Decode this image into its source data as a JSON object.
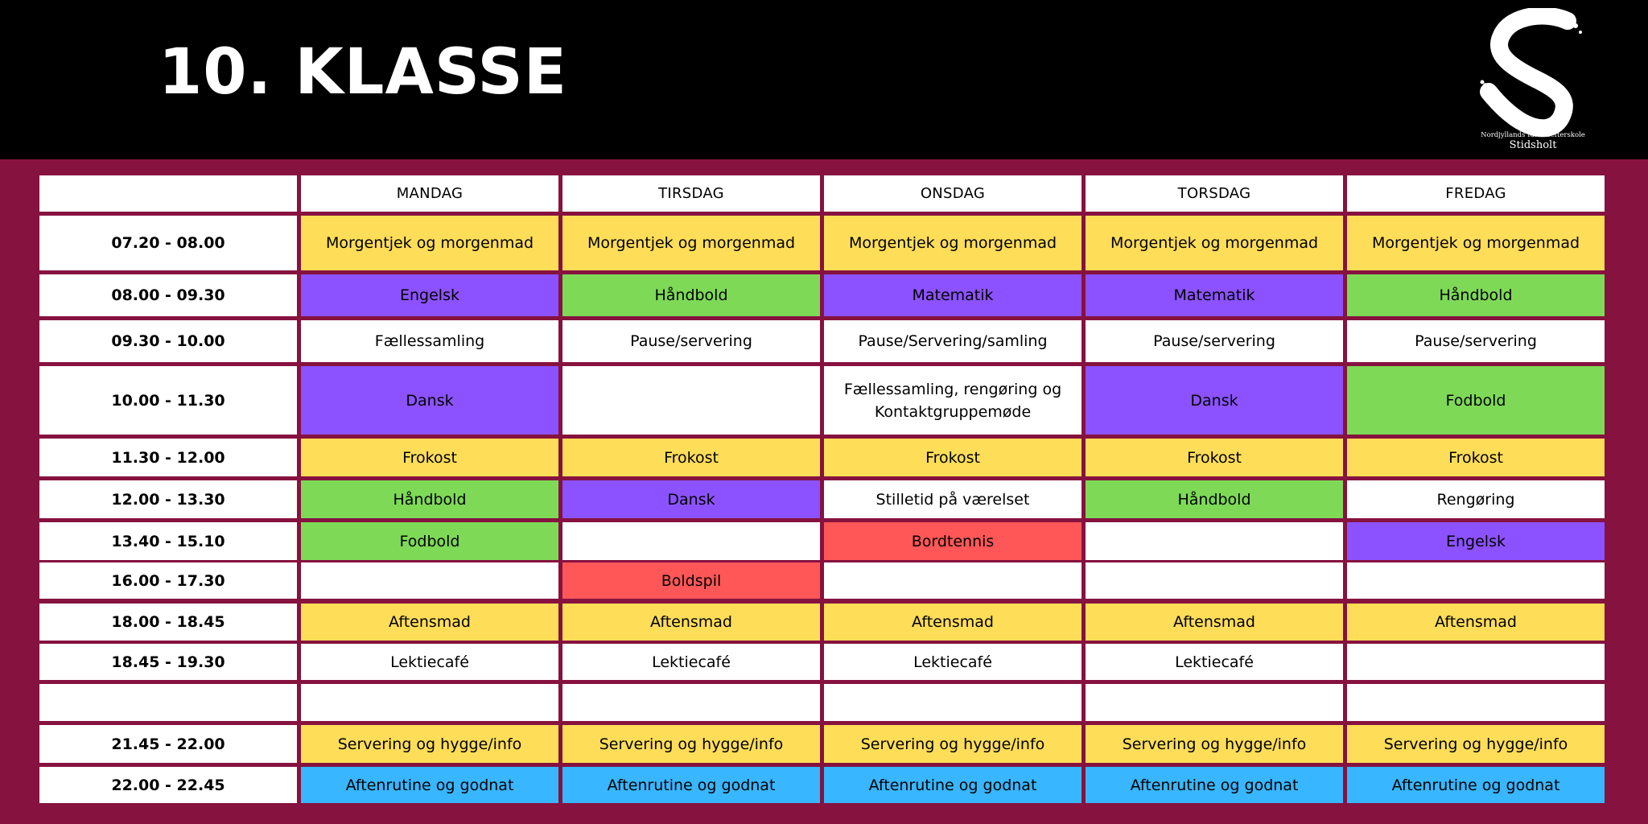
{
  "title": "10. KLASSE",
  "logo": {
    "icon": "brush-s-logo",
    "line1": "Nordjyllands Idrætsefterskole",
    "line2": "Stidsholt"
  },
  "colors": {
    "header": "#000000",
    "background": "#86123f",
    "white": "#ffffff",
    "yellow": "#fedd58",
    "purple": "#8c52ff",
    "green": "#7ed957",
    "red": "#ff5757",
    "blue": "#38b6ff"
  },
  "days": [
    "MANDAG",
    "TIRSDAG",
    "ONSDAG",
    "TORSDAG",
    "FREDAG"
  ],
  "rows": [
    {
      "time": "07.20 - 08.00",
      "cells": [
        {
          "text": "Morgentjek og morgenmad",
          "color": "yellow"
        },
        {
          "text": "Morgentjek og morgenmad",
          "color": "yellow"
        },
        {
          "text": "Morgentjek og morgenmad",
          "color": "yellow"
        },
        {
          "text": "Morgentjek og morgenmad",
          "color": "yellow"
        },
        {
          "text": "Morgentjek og morgenmad",
          "color": "yellow"
        }
      ]
    },
    {
      "time": "08.00 - 09.30",
      "cells": [
        {
          "text": "Engelsk",
          "color": "purple"
        },
        {
          "text": "Håndbold",
          "color": "green"
        },
        {
          "text": "Matematik",
          "color": "purple"
        },
        {
          "text": "Matematik",
          "color": "purple"
        },
        {
          "text": "Håndbold",
          "color": "green"
        }
      ]
    },
    {
      "time": "09.30 - 10.00",
      "cells": [
        {
          "text": "Fællessamling",
          "color": "white"
        },
        {
          "text": "Pause/servering",
          "color": "white"
        },
        {
          "text": "Pause/Servering/samling",
          "color": "white"
        },
        {
          "text": "Pause/servering",
          "color": "white"
        },
        {
          "text": "Pause/servering",
          "color": "white"
        }
      ]
    },
    {
      "time": "10.00 - 11.30",
      "cells": [
        {
          "text": "Dansk",
          "color": "purple"
        },
        {
          "text": "",
          "color": "white"
        },
        {
          "text": "Fællessamling, rengøring og Kontaktgruppemøde",
          "color": "white"
        },
        {
          "text": "Dansk",
          "color": "purple"
        },
        {
          "text": "Fodbold",
          "color": "green"
        }
      ]
    },
    {
      "time": "11.30 - 12.00",
      "cells": [
        {
          "text": "Frokost",
          "color": "yellow"
        },
        {
          "text": "Frokost",
          "color": "yellow"
        },
        {
          "text": "Frokost",
          "color": "yellow"
        },
        {
          "text": "Frokost",
          "color": "yellow"
        },
        {
          "text": "Frokost",
          "color": "yellow"
        }
      ]
    },
    {
      "time": "12.00 - 13.30",
      "cells": [
        {
          "text": "Håndbold",
          "color": "green"
        },
        {
          "text": "Dansk",
          "color": "purple"
        },
        {
          "text": "Stilletid på værelset",
          "color": "white"
        },
        {
          "text": "Håndbold",
          "color": "green"
        },
        {
          "text": "Rengøring",
          "color": "white"
        }
      ]
    },
    {
      "time": "13.40 - 15.10",
      "cells": [
        {
          "text": "Fodbold",
          "color": "green"
        },
        {
          "text": "",
          "color": "white"
        },
        {
          "text": "Bordtennis",
          "color": "red"
        },
        {
          "text": "",
          "color": "white"
        },
        {
          "text": "Engelsk",
          "color": "purple"
        }
      ]
    },
    {
      "time": "16.00 - 17.30",
      "cells": [
        {
          "text": "",
          "color": "white"
        },
        {
          "text": "Boldspil",
          "color": "red"
        },
        {
          "text": "",
          "color": "white"
        },
        {
          "text": "",
          "color": "white"
        },
        {
          "text": "",
          "color": "white"
        }
      ]
    },
    {
      "time": "18.00 - 18.45",
      "cells": [
        {
          "text": "Aftensmad",
          "color": "yellow"
        },
        {
          "text": "Aftensmad",
          "color": "yellow"
        },
        {
          "text": "Aftensmad",
          "color": "yellow"
        },
        {
          "text": "Aftensmad",
          "color": "yellow"
        },
        {
          "text": "Aftensmad",
          "color": "yellow"
        }
      ]
    },
    {
      "time": "18.45 - 19.30",
      "cells": [
        {
          "text": "Lektiecafé",
          "color": "white"
        },
        {
          "text": "Lektiecafé",
          "color": "white"
        },
        {
          "text": "Lektiecafé",
          "color": "white"
        },
        {
          "text": "Lektiecafé",
          "color": "white"
        },
        {
          "text": "",
          "color": "white"
        }
      ]
    },
    {
      "time": "",
      "cells": [
        {
          "text": "",
          "color": "white"
        },
        {
          "text": "",
          "color": "white"
        },
        {
          "text": "",
          "color": "white"
        },
        {
          "text": "",
          "color": "white"
        },
        {
          "text": "",
          "color": "white"
        }
      ]
    },
    {
      "time": "21.45 - 22.00",
      "cells": [
        {
          "text": "Servering og hygge/info",
          "color": "yellow"
        },
        {
          "text": "Servering og hygge/info",
          "color": "yellow"
        },
        {
          "text": "Servering og hygge/info",
          "color": "yellow"
        },
        {
          "text": "Servering og hygge/info",
          "color": "yellow"
        },
        {
          "text": "Servering og hygge/info",
          "color": "yellow"
        }
      ]
    },
    {
      "time": "22.00 - 22.45",
      "cells": [
        {
          "text": "Aftenrutine og godnat",
          "color": "blue"
        },
        {
          "text": "Aftenrutine og godnat",
          "color": "blue"
        },
        {
          "text": "Aftenrutine og godnat",
          "color": "blue"
        },
        {
          "text": "Aftenrutine og godnat",
          "color": "blue"
        },
        {
          "text": "Aftenrutine og godnat",
          "color": "blue"
        }
      ]
    }
  ]
}
